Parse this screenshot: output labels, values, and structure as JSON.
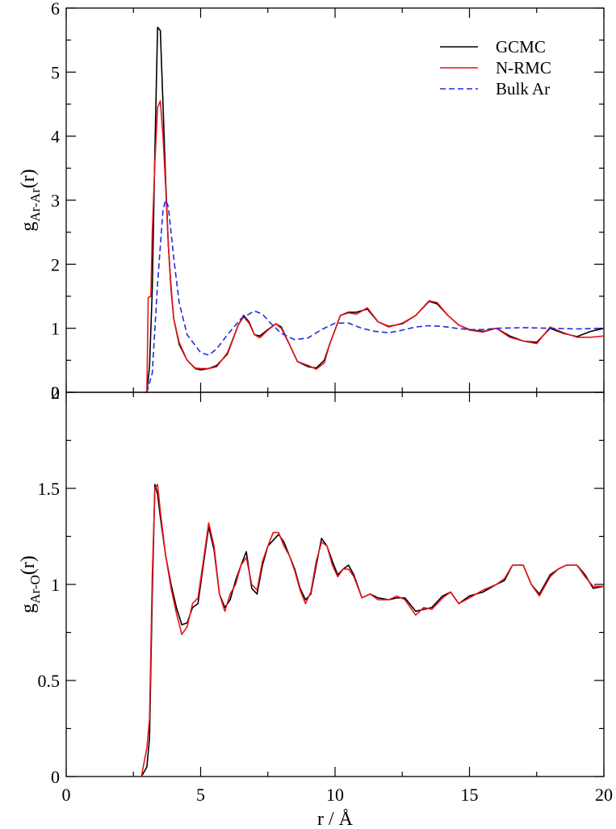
{
  "chart_data": [
    {
      "panel": "top",
      "type": "line",
      "ylabel": "g",
      "ylabel_sub": "Ar-Ar",
      "ylabel_suffix": "(r)",
      "xlim": [
        0,
        20
      ],
      "ylim": [
        0,
        6
      ],
      "yticks": [
        0,
        1,
        2,
        3,
        4,
        5,
        6
      ],
      "xticks": [
        0,
        5,
        10,
        15,
        20
      ],
      "grid": false,
      "legend_position": "top-right",
      "series": [
        {
          "name": "GCMC",
          "color": "#000000",
          "dash": "solid",
          "x": [
            3.0,
            3.1,
            3.2,
            3.3,
            3.4,
            3.5,
            3.6,
            3.7,
            3.8,
            3.9,
            4.0,
            4.2,
            4.5,
            4.8,
            5.0,
            5.3,
            5.6,
            6.0,
            6.4,
            6.6,
            6.8,
            7.0,
            7.2,
            7.5,
            7.8,
            8.0,
            8.3,
            8.6,
            9.0,
            9.3,
            9.6,
            9.8,
            10.2,
            10.5,
            10.8,
            11.2,
            11.6,
            12.0,
            12.5,
            13.0,
            13.5,
            13.8,
            14.2,
            14.6,
            15.0,
            15.5,
            16.0,
            16.5,
            17.0,
            17.5,
            18.0,
            18.5,
            19.0,
            19.5,
            20.0
          ],
          "y": [
            0.0,
            0.4,
            1.6,
            3.8,
            5.7,
            5.65,
            4.5,
            3.3,
            2.3,
            1.6,
            1.15,
            0.75,
            0.5,
            0.37,
            0.35,
            0.37,
            0.42,
            0.6,
            1.05,
            1.2,
            1.1,
            0.9,
            0.88,
            0.98,
            1.07,
            1.02,
            0.75,
            0.48,
            0.4,
            0.38,
            0.5,
            0.75,
            1.2,
            1.25,
            1.25,
            1.3,
            1.1,
            1.03,
            1.07,
            1.2,
            1.42,
            1.38,
            1.2,
            1.05,
            0.98,
            0.95,
            1.0,
            0.88,
            0.8,
            0.78,
            1.0,
            0.92,
            0.87,
            0.95,
            1.0
          ]
        },
        {
          "name": "N-RMC",
          "color": "#e8141c",
          "dash": "solid",
          "x": [
            2.9,
            3.0,
            3.05,
            3.15,
            3.2,
            3.3,
            3.4,
            3.5,
            3.6,
            3.7,
            3.8,
            3.9,
            4.0,
            4.2,
            4.5,
            4.8,
            5.0,
            5.3,
            5.6,
            6.0,
            6.4,
            6.6,
            6.8,
            7.0,
            7.2,
            7.5,
            7.8,
            8.0,
            8.3,
            8.6,
            9.0,
            9.3,
            9.6,
            9.8,
            10.2,
            10.5,
            10.8,
            11.2,
            11.6,
            12.0,
            12.5,
            13.0,
            13.5,
            13.8,
            14.2,
            14.6,
            15.0,
            15.5,
            16.0,
            16.5,
            17.0,
            17.5,
            18.0,
            18.5,
            19.0,
            19.5,
            20.0
          ],
          "y": [
            0.0,
            0.0,
            1.48,
            1.5,
            2.5,
            3.6,
            4.45,
            4.55,
            4.0,
            3.2,
            2.3,
            1.65,
            1.15,
            0.78,
            0.5,
            0.38,
            0.37,
            0.37,
            0.4,
            0.62,
            1.05,
            1.18,
            1.08,
            0.9,
            0.85,
            0.97,
            1.07,
            1.0,
            0.75,
            0.48,
            0.42,
            0.36,
            0.46,
            0.75,
            1.2,
            1.24,
            1.22,
            1.32,
            1.1,
            1.02,
            1.08,
            1.2,
            1.43,
            1.4,
            1.2,
            1.05,
            0.97,
            0.94,
            1.0,
            0.86,
            0.8,
            0.76,
            1.02,
            0.93,
            0.86,
            0.86,
            0.88
          ]
        },
        {
          "name": "Bulk Ar",
          "color": "#1f2be0",
          "dash": "dashed",
          "x": [
            3.0,
            3.2,
            3.4,
            3.6,
            3.7,
            3.8,
            4.0,
            4.2,
            4.5,
            5.0,
            5.3,
            5.6,
            6.0,
            6.5,
            7.0,
            7.3,
            7.6,
            8.0,
            8.5,
            9.0,
            9.5,
            10.0,
            10.5,
            11.0,
            11.5,
            12.0,
            12.5,
            13.0,
            13.5,
            14.0,
            14.5,
            15.0,
            15.5,
            16.0,
            17.0,
            18.0,
            19.0,
            20.0
          ],
          "y": [
            0.0,
            0.3,
            1.7,
            2.85,
            3.0,
            2.9,
            2.1,
            1.4,
            0.9,
            0.62,
            0.58,
            0.68,
            0.9,
            1.15,
            1.27,
            1.22,
            1.08,
            0.92,
            0.82,
            0.85,
            0.98,
            1.08,
            1.08,
            1.0,
            0.95,
            0.93,
            0.97,
            1.02,
            1.04,
            1.03,
            1.0,
            0.98,
            0.98,
            1.0,
            1.01,
            1.0,
            0.99,
            1.0
          ]
        }
      ]
    },
    {
      "panel": "bottom",
      "type": "line",
      "xlabel": "r / Å",
      "ylabel": "g",
      "ylabel_sub": "Ar-O",
      "ylabel_suffix": "(r)",
      "xlim": [
        0,
        20
      ],
      "ylim": [
        0,
        2
      ],
      "yticks": [
        0,
        0.5,
        1,
        1.5,
        2
      ],
      "ytick_labels": [
        "0",
        "0.5",
        "1",
        "1.5",
        "2"
      ],
      "xticks": [
        0,
        5,
        10,
        15,
        20
      ],
      "grid": false,
      "series": [
        {
          "name": "GCMC",
          "color": "#000000",
          "dash": "solid",
          "x": [
            2.8,
            3.0,
            3.1,
            3.2,
            3.3,
            3.4,
            3.5,
            3.7,
            3.9,
            4.1,
            4.3,
            4.5,
            4.7,
            4.9,
            5.1,
            5.3,
            5.5,
            5.7,
            5.9,
            6.1,
            6.3,
            6.5,
            6.7,
            6.9,
            7.1,
            7.3,
            7.5,
            7.7,
            7.9,
            8.1,
            8.3,
            8.5,
            8.7,
            8.9,
            9.1,
            9.3,
            9.5,
            9.7,
            9.9,
            10.1,
            10.3,
            10.5,
            10.7,
            11.0,
            11.3,
            11.6,
            12.0,
            12.3,
            12.6,
            13.0,
            13.3,
            13.6,
            14.0,
            14.3,
            14.6,
            15.0,
            15.5,
            16.0,
            16.3,
            16.6,
            17.0,
            17.3,
            17.6,
            18.0,
            18.3,
            18.6,
            19.0,
            19.3,
            19.6,
            20.0
          ],
          "y": [
            0.0,
            0.05,
            0.2,
            0.95,
            1.52,
            1.47,
            1.35,
            1.15,
            1.0,
            0.88,
            0.79,
            0.8,
            0.88,
            0.9,
            1.1,
            1.3,
            1.18,
            0.95,
            0.88,
            0.92,
            1.02,
            1.1,
            1.17,
            0.98,
            0.95,
            1.1,
            1.2,
            1.23,
            1.26,
            1.22,
            1.15,
            1.08,
            0.98,
            0.92,
            0.95,
            1.1,
            1.24,
            1.2,
            1.12,
            1.05,
            1.08,
            1.1,
            1.05,
            0.93,
            0.95,
            0.93,
            0.92,
            0.93,
            0.93,
            0.86,
            0.87,
            0.88,
            0.94,
            0.96,
            0.9,
            0.94,
            0.96,
            1.0,
            1.02,
            1.1,
            1.1,
            1.0,
            0.95,
            1.05,
            1.08,
            1.1,
            1.1,
            1.05,
            0.98,
            0.99
          ]
        },
        {
          "name": "N-RMC",
          "color": "#e8141c",
          "dash": "solid",
          "x": [
            2.8,
            3.0,
            3.1,
            3.2,
            3.3,
            3.4,
            3.5,
            3.7,
            3.9,
            4.1,
            4.3,
            4.5,
            4.7,
            4.9,
            5.1,
            5.3,
            5.5,
            5.7,
            5.9,
            6.1,
            6.3,
            6.5,
            6.7,
            6.9,
            7.1,
            7.3,
            7.5,
            7.7,
            7.9,
            8.1,
            8.3,
            8.5,
            8.7,
            8.9,
            9.1,
            9.3,
            9.5,
            9.7,
            9.9,
            10.1,
            10.3,
            10.5,
            10.7,
            11.0,
            11.3,
            11.6,
            12.0,
            12.3,
            12.6,
            13.0,
            13.3,
            13.6,
            14.0,
            14.3,
            14.6,
            15.0,
            15.5,
            16.0,
            16.3,
            16.6,
            17.0,
            17.3,
            17.6,
            18.0,
            18.3,
            18.6,
            19.0,
            19.3,
            19.6,
            20.0
          ],
          "y": [
            0.0,
            0.15,
            0.3,
            1.05,
            1.5,
            1.52,
            1.38,
            1.15,
            0.98,
            0.85,
            0.74,
            0.78,
            0.9,
            0.93,
            1.12,
            1.32,
            1.2,
            0.95,
            0.86,
            0.95,
            1.0,
            1.1,
            1.14,
            1.0,
            0.97,
            1.12,
            1.2,
            1.27,
            1.27,
            1.2,
            1.15,
            1.07,
            0.97,
            0.9,
            0.96,
            1.12,
            1.22,
            1.2,
            1.1,
            1.04,
            1.08,
            1.08,
            1.04,
            0.93,
            0.95,
            0.92,
            0.92,
            0.94,
            0.92,
            0.84,
            0.88,
            0.87,
            0.93,
            0.96,
            0.9,
            0.93,
            0.97,
            1.0,
            1.03,
            1.1,
            1.1,
            1.0,
            0.94,
            1.04,
            1.08,
            1.1,
            1.1,
            1.04,
            0.99,
            0.99
          ]
        }
      ]
    }
  ]
}
